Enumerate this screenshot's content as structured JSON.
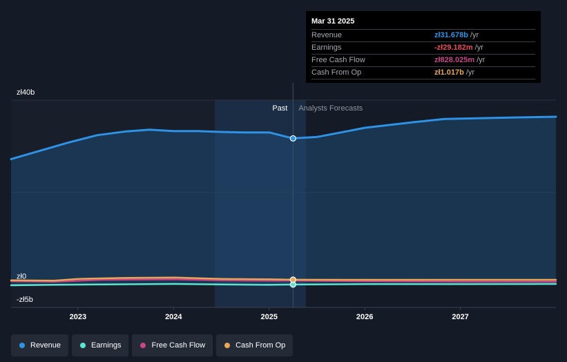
{
  "chart_data": {
    "type": "area",
    "y_tick_labels": [
      "zł40b",
      "zł0",
      "-zł5b"
    ],
    "y_ticks": [
      40,
      0,
      -5
    ],
    "x_tick_labels": [
      "2023",
      "2024",
      "2025",
      "2026",
      "2027"
    ],
    "ylim": [
      -5,
      40
    ],
    "xlim": [
      2022.3,
      2028.0
    ],
    "divider_x": 2025.25,
    "past_label": "Past",
    "forecast_label": "Analysts Forecasts",
    "series": [
      {
        "name": "Revenue",
        "color": "#2e93e6",
        "x": [
          2022.3,
          2022.6,
          2022.9,
          2023.2,
          2023.5,
          2023.75,
          2024.0,
          2024.25,
          2024.5,
          2024.75,
          2025.0,
          2025.25,
          2025.5,
          2025.75,
          2026.0,
          2026.5,
          2026.83,
          2027.5,
          2028.0
        ],
        "y": [
          27.2,
          29.0,
          30.8,
          32.4,
          33.2,
          33.6,
          33.3,
          33.3,
          33.1,
          33.0,
          33.0,
          31.7,
          32.0,
          33.0,
          34.0,
          35.2,
          35.9,
          36.2,
          36.4
        ]
      },
      {
        "name": "Earnings",
        "color": "#5de3d0",
        "x": [
          2022.3,
          2022.75,
          2023.25,
          2024.0,
          2024.5,
          2025.0,
          2025.25,
          2026.0,
          2027.0,
          2028.0
        ],
        "y": [
          -0.2,
          -0.1,
          0.0,
          0.1,
          0.0,
          -0.1,
          -0.03,
          0.05,
          0.05,
          0.1
        ]
      },
      {
        "name": "Free Cash Flow",
        "color": "#c8458a",
        "x": [
          2022.3,
          2022.75,
          2023.25,
          2024.0,
          2024.5,
          2025.0,
          2025.25,
          2026.0,
          2027.0,
          2028.0
        ],
        "y": [
          0.7,
          0.6,
          1.0,
          1.1,
          0.9,
          0.8,
          0.83,
          0.7,
          0.6,
          0.6
        ]
      },
      {
        "name": "Cash From Op",
        "color": "#e8a657",
        "x": [
          2022.3,
          2022.75,
          2023.0,
          2023.5,
          2024.0,
          2024.5,
          2025.0,
          2025.25,
          2026.0,
          2027.0,
          2028.0
        ],
        "y": [
          0.9,
          0.8,
          1.2,
          1.4,
          1.5,
          1.2,
          1.1,
          1.02,
          1.0,
          1.0,
          1.0
        ]
      }
    ]
  },
  "tooltip": {
    "date": "Mar 31 2025",
    "rows": [
      {
        "label": "Revenue",
        "value": "zł31.678b",
        "unit": "/yr",
        "color": "#2e93e6"
      },
      {
        "label": "Earnings",
        "value": "-zł29.182m",
        "unit": "/yr",
        "color": "#e84a5f"
      },
      {
        "label": "Free Cash Flow",
        "value": "zł828.025m",
        "unit": "/yr",
        "color": "#c8458a"
      },
      {
        "label": "Cash From Op",
        "value": "zł1.017b",
        "unit": "/yr",
        "color": "#e8a657"
      }
    ]
  },
  "legend": [
    {
      "label": "Revenue",
      "color": "#2e93e6"
    },
    {
      "label": "Earnings",
      "color": "#5de3d0"
    },
    {
      "label": "Free Cash Flow",
      "color": "#c8458a"
    },
    {
      "label": "Cash From Op",
      "color": "#e8a657"
    }
  ]
}
